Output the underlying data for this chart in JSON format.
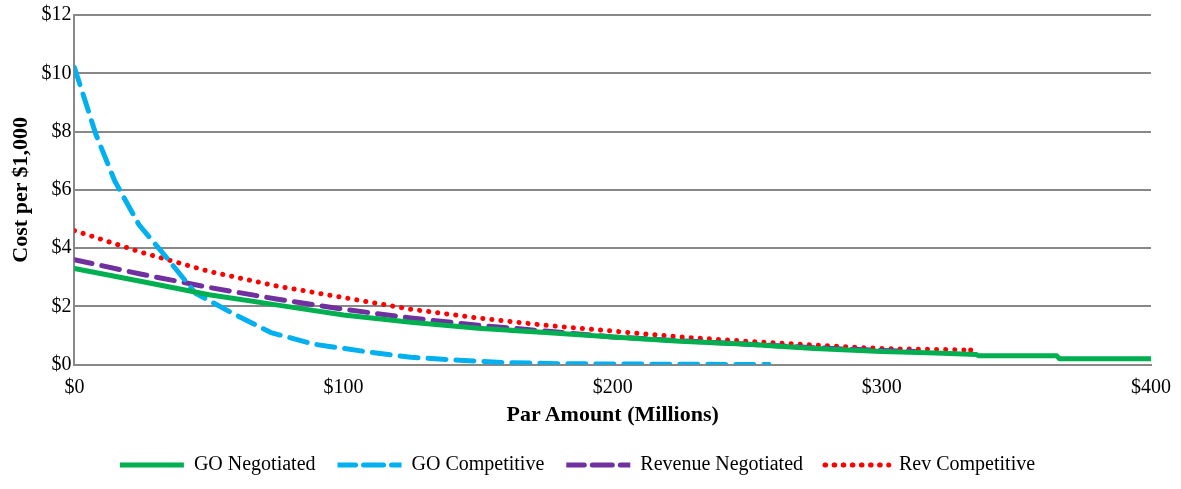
{
  "chart_data": {
    "type": "line",
    "xlabel": "Par Amount (Millions)",
    "ylabel": "Cost per $1,000",
    "xlim": [
      0,
      400
    ],
    "xticks": [
      {
        "value": 0,
        "label": "$0"
      },
      {
        "value": 100,
        "label": "$100"
      },
      {
        "value": 200,
        "label": "$200"
      },
      {
        "value": 300,
        "label": "$300"
      },
      {
        "value": 400,
        "label": "$400"
      }
    ],
    "ylim": [
      0,
      12
    ],
    "yticks": [
      {
        "value": 0,
        "label": "$0"
      },
      {
        "value": 2,
        "label": "$2"
      },
      {
        "value": 4,
        "label": "$4"
      },
      {
        "value": 6,
        "label": "$6"
      },
      {
        "value": 8,
        "label": "$8"
      },
      {
        "value": 10,
        "label": "$10"
      },
      {
        "value": 12,
        "label": "$12"
      }
    ],
    "grid": "y",
    "legend": "bottom",
    "marker": "none",
    "series": [
      {
        "name": "GO Negotiated",
        "color": "#00b050",
        "line_style": "solid",
        "x": [
          0,
          25,
          50,
          75,
          100,
          125,
          150,
          175,
          200,
          225,
          250,
          275,
          300,
          320,
          335,
          336,
          365,
          366,
          400
        ],
        "values": [
          3.3,
          2.85,
          2.4,
          2.05,
          1.7,
          1.45,
          1.25,
          1.1,
          0.95,
          0.8,
          0.7,
          0.55,
          0.45,
          0.4,
          0.35,
          0.3,
          0.3,
          0.2,
          0.2
        ]
      },
      {
        "name": "GO Competitive",
        "color": "#00b0f0",
        "line_style": "dashed",
        "x": [
          0,
          8,
          15,
          24,
          34,
          45,
          59,
          73,
          89,
          108,
          125,
          143,
          160,
          180,
          200,
          230,
          258
        ],
        "values": [
          10.2,
          7.9,
          6.3,
          4.8,
          3.7,
          2.45,
          1.75,
          1.1,
          0.7,
          0.45,
          0.25,
          0.15,
          0.07,
          0.03,
          0.02,
          0.01,
          0
        ]
      },
      {
        "name": "Revenue Negotiated",
        "color": "#7030a0",
        "line_style": "dashed",
        "x": [
          0,
          25,
          50,
          75,
          100,
          125,
          150,
          175,
          200,
          225,
          250,
          275,
          300,
          312
        ],
        "values": [
          3.6,
          3.1,
          2.65,
          2.25,
          1.9,
          1.6,
          1.35,
          1.15,
          0.95,
          0.82,
          0.7,
          0.58,
          0.48,
          0.45
        ]
      },
      {
        "name": "Rev Competitive",
        "color": "#ff0000",
        "line_style": "dotted",
        "x": [
          0,
          25,
          50,
          75,
          100,
          125,
          150,
          175,
          200,
          225,
          250,
          275,
          300,
          333
        ],
        "values": [
          4.6,
          3.85,
          3.2,
          2.7,
          2.3,
          1.9,
          1.6,
          1.35,
          1.15,
          0.95,
          0.8,
          0.67,
          0.55,
          0.5
        ]
      }
    ]
  }
}
